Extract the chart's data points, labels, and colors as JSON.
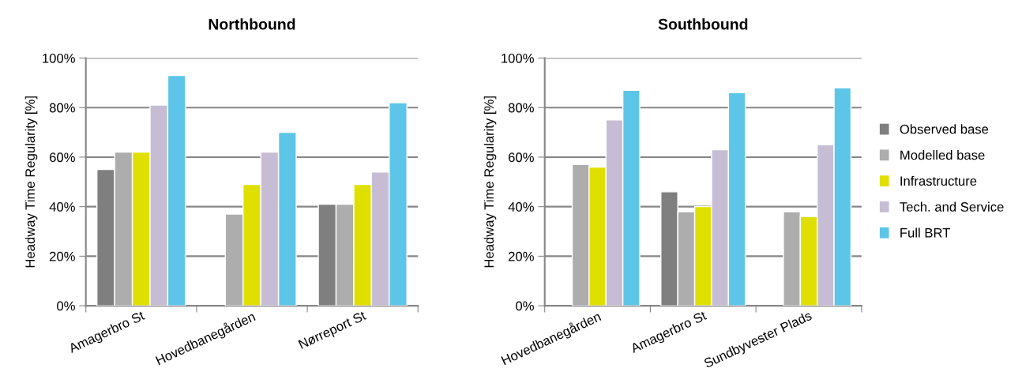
{
  "chart_data": [
    {
      "type": "bar",
      "title": "Northbound",
      "ylabel": "Headway Time Regularity [%]",
      "categories": [
        "Amagerbro St",
        "Hovedbanegården",
        "Nørreport St"
      ],
      "series": [
        {
          "color": "#7f7f7f",
          "values": [
            55,
            null,
            41
          ]
        },
        {
          "color": "#acadac",
          "values": [
            62,
            37,
            41
          ]
        },
        {
          "color": "#dfe000",
          "values": [
            62,
            49,
            49
          ]
        },
        {
          "color": "#c6bdd4",
          "values": [
            81,
            62,
            54
          ]
        },
        {
          "color": "#5dc5e8",
          "values": [
            93,
            70,
            82
          ]
        }
      ],
      "ylim": [
        0,
        100
      ],
      "yticks": [
        {
          "value": 0,
          "label": "0%"
        },
        {
          "value": 20,
          "label": "20%"
        },
        {
          "value": 40,
          "label": "40%"
        },
        {
          "value": 60,
          "label": "60%"
        },
        {
          "value": 80,
          "label": "80%"
        },
        {
          "value": 100,
          "label": "100%"
        }
      ],
      "grid": "y"
    },
    {
      "type": "bar",
      "title": "Southbound",
      "ylabel": "Headway Time Regularity [%]",
      "categories": [
        "Hovedbanegården",
        "Amagerbro St",
        "Sundbyvester Plads"
      ],
      "series": [
        {
          "name": "Observed base",
          "color": "#7f7f7f",
          "values": [
            null,
            46,
            null
          ]
        },
        {
          "name": "Modelled base",
          "color": "#acadac",
          "values": [
            57,
            38,
            38
          ]
        },
        {
          "name": "Infrastructure",
          "color": "#dfe000",
          "values": [
            56,
            40,
            36
          ]
        },
        {
          "name": "Tech. and Service",
          "color": "#c6bdd4",
          "values": [
            75,
            63,
            65
          ]
        },
        {
          "name": "Full BRT",
          "color": "#5dc5e8",
          "values": [
            87,
            86,
            88
          ]
        }
      ],
      "ylim": [
        0,
        100
      ],
      "yticks": [
        {
          "value": 0,
          "label": "0%"
        },
        {
          "value": 20,
          "label": "20%"
        },
        {
          "value": 40,
          "label": "40%"
        },
        {
          "value": 60,
          "label": "60%"
        },
        {
          "value": 80,
          "label": "80%"
        },
        {
          "value": 100,
          "label": "100%"
        }
      ],
      "grid": "y",
      "legend": "right"
    }
  ]
}
